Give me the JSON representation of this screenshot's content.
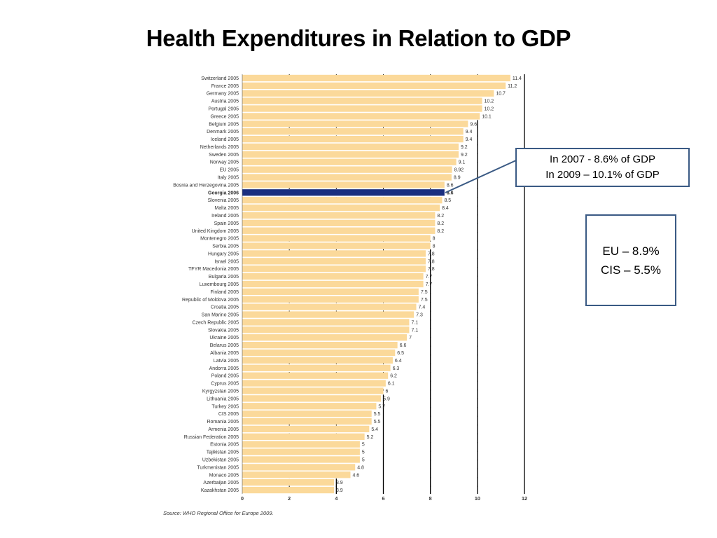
{
  "slide": {
    "title": "Health Expenditures in Relation to GDP",
    "source": "Source: WHO Regional Office for Europe 2009."
  },
  "callouts": {
    "georgia_line1": "In 2007 - 8.6% of GDP",
    "georgia_line2": "In 2009 – 10.1% of GDP",
    "eu_line1": "EU – 8.9%",
    "eu_line2": "CIS – 5.5%"
  },
  "colors": {
    "bar": "#fbd99a",
    "highlight": "#1a2f80",
    "callout_border": "#3a5a84",
    "gridline": "#000000"
  },
  "chart_data": {
    "type": "bar",
    "orientation": "horizontal",
    "title": "",
    "xlabel": "",
    "ylabel": "",
    "xlim": [
      0,
      12
    ],
    "x_ticks": [
      "0",
      "2",
      "4",
      "6",
      "8",
      "10",
      "12"
    ],
    "grid": "vertical dotted",
    "highlight": "Georgia 2006",
    "categories": [
      "Switzerland 2005",
      "France 2005",
      "Germany 2005",
      "Austria 2005",
      "Portugal 2005",
      "Greece 2005",
      "Belgium 2005",
      "Denmark 2005",
      "Iceland 2005",
      "Netherlands 2005",
      "Sweden 2005",
      "Norway 2005",
      "EU 2005",
      "Italy 2005",
      "Bosnia and Herzegovina 2005",
      "Georgia 2006",
      "Slovenia 2005",
      "Malta 2005",
      "Ireland 2005",
      "Spain 2005",
      "United Kingdom 2005",
      "Montenegro 2005",
      "Serbia 2005",
      "Hungary 2005",
      "Israel 2005",
      "TFYR Macedonia 2005",
      "Bulgaria 2005",
      "Luxembourg 2005",
      "Finland 2005",
      "Republic of Moldova 2005",
      "Croatia 2005",
      "San Marino 2005",
      "Czech Republic 2005",
      "Slovakia 2005",
      "Ukraine 2005",
      "Belarus 2005",
      "Albania 2005",
      "Latvia 2005",
      "Andorra 2005",
      "Poland 2005",
      "Cyprus 2005",
      "Kyrgyzstan 2005",
      "Lithuania 2005",
      "Turkey 2005",
      "CIS 2005",
      "Romania 2005",
      "Armenia 2005",
      "Russian Federation 2005",
      "Estonia 2005",
      "Tajikistan 2005",
      "Uzbekistan 2005",
      "Turkmenistan 2005",
      "Monaco 2005",
      "Azerbaijan 2005",
      "Kazakhstan 2005"
    ],
    "value_labels": [
      "11.4",
      "11.2",
      "10.7",
      "10.2",
      "10.2",
      "10.1",
      "9.6",
      "9.4",
      "9.4",
      "9.2",
      "9.2",
      "9.1",
      "8.92",
      "8.9",
      "8.6",
      "8.6",
      "8.5",
      "8.4",
      "8.2",
      "8.2",
      "8.2",
      "8",
      "8",
      "7.8",
      "7.8",
      "7.8",
      "7.7",
      "7.7",
      "7.5",
      "7.5",
      "7.4",
      "7.3",
      "7.1",
      "7.1",
      "7",
      "6.6",
      "6.5",
      "6.4",
      "6.3",
      "6.2",
      "6.1",
      "6",
      "5.9",
      "5.7",
      "5.5",
      "5.5",
      "5.4",
      "5.2",
      "5",
      "5",
      "5",
      "4.8",
      "4.6",
      "3.9",
      "3.9"
    ],
    "values": [
      11.4,
      11.2,
      10.7,
      10.2,
      10.2,
      10.1,
      9.6,
      9.4,
      9.4,
      9.2,
      9.2,
      9.1,
      8.92,
      8.9,
      8.6,
      8.6,
      8.5,
      8.4,
      8.2,
      8.2,
      8.2,
      8.0,
      8.0,
      7.8,
      7.8,
      7.8,
      7.7,
      7.7,
      7.5,
      7.5,
      7.4,
      7.3,
      7.1,
      7.1,
      7.0,
      6.6,
      6.5,
      6.4,
      6.3,
      6.2,
      6.1,
      6.0,
      5.9,
      5.7,
      5.5,
      5.5,
      5.4,
      5.2,
      5.0,
      5.0,
      5.0,
      4.8,
      4.6,
      3.9,
      3.9
    ]
  }
}
